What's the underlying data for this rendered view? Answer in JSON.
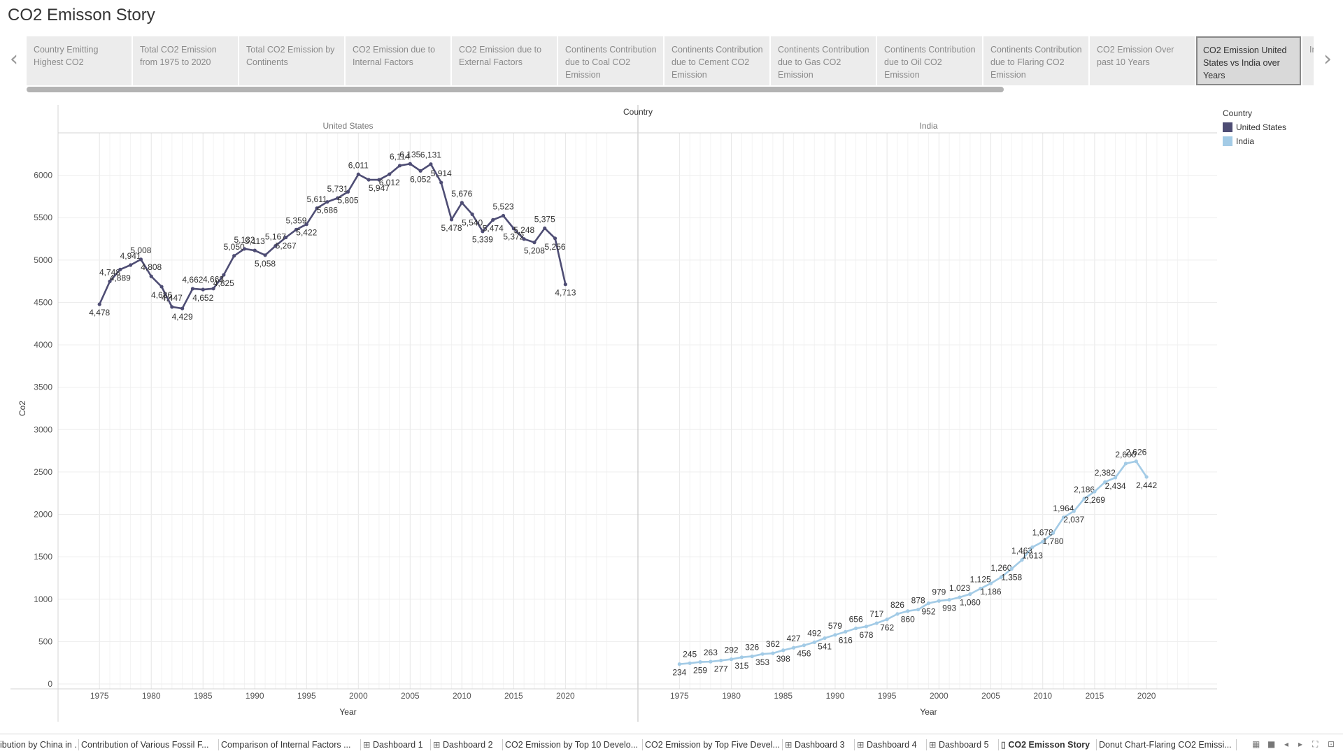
{
  "title": "CO2 Emisson Story",
  "story_points": [
    "Country Emitting Highest CO2",
    "Total CO2 Emission from 1975 to 2020",
    "Total CO2 Emission by Continents",
    "CO2 Emission due to Internal Factors",
    "CO2 Emission due to External Factors",
    "Continents Contribution due to Coal CO2 Emission",
    "Continents Contribution due to Cement CO2 Emission",
    "Continents Contribution due to Gas CO2 Emission",
    "Continents Contribution due to Oil CO2 Emission",
    "Continents Contribution due to Flaring CO2 Emission",
    "CO2 Emission Over past 10 Years",
    "CO2 Emission United States vs India over Years",
    "India vs United States"
  ],
  "active_story_index": 11,
  "sheet_tabs": [
    {
      "label": "ibution by China in ...",
      "icon": ""
    },
    {
      "label": "Contribution of Various Fossil F...",
      "icon": ""
    },
    {
      "label": "Comparison of Internal Factors ...",
      "icon": ""
    },
    {
      "label": "Dashboard 1",
      "icon": "dashboard-icon"
    },
    {
      "label": "Dashboard 2",
      "icon": "dashboard-icon"
    },
    {
      "label": "CO2 Emission by Top 10 Develo...",
      "icon": ""
    },
    {
      "label": "CO2 Emission by Top Five Devel...",
      "icon": ""
    },
    {
      "label": "Dashboard 3",
      "icon": "dashboard-icon"
    },
    {
      "label": "Dashboard 4",
      "icon": "dashboard-icon"
    },
    {
      "label": "Dashboard 5",
      "icon": "dashboard-icon"
    },
    {
      "label": "CO2 Emisson Story",
      "icon": "story-icon",
      "active": true
    },
    {
      "label": "Donut Chart-Flaring CO2 Emissi...",
      "icon": ""
    }
  ],
  "legend": {
    "title": "Country",
    "items": [
      {
        "label": "United States",
        "color": "#4e4d74"
      },
      {
        "label": "India",
        "color": "#a3cbe6"
      }
    ]
  },
  "chart_data": {
    "type": "line",
    "column_header": "Country",
    "panes": [
      "United States",
      "India"
    ],
    "xlabel": "Year",
    "ylabel": "Co2",
    "xlim": [
      1971,
      2027
    ],
    "ylim": [
      0,
      6500
    ],
    "x_ticks": [
      1975,
      1980,
      1985,
      1990,
      1995,
      2000,
      2005,
      2010,
      2015,
      2020
    ],
    "y_ticks": [
      0,
      500,
      1000,
      1500,
      2000,
      2500,
      3000,
      3500,
      4000,
      4500,
      5000,
      5500,
      6000
    ],
    "grid": true,
    "legend_position": "right",
    "x": [
      1975,
      1976,
      1977,
      1978,
      1979,
      1980,
      1981,
      1982,
      1983,
      1984,
      1985,
      1986,
      1987,
      1988,
      1989,
      1990,
      1991,
      1992,
      1993,
      1994,
      1995,
      1996,
      1997,
      1998,
      1999,
      2000,
      2001,
      2002,
      2003,
      2004,
      2005,
      2006,
      2007,
      2008,
      2009,
      2010,
      2011,
      2012,
      2013,
      2014,
      2015,
      2016,
      2017,
      2018,
      2019,
      2020
    ],
    "series": [
      {
        "name": "United States",
        "color": "#4e4d74",
        "values": [
          4478,
          4748,
          4889,
          4941,
          5008,
          4808,
          4686,
          4447,
          4429,
          4662,
          4652,
          4663,
          4825,
          5050,
          5132,
          5113,
          5058,
          5167,
          5267,
          5359,
          5422,
          5611,
          5686,
          5731,
          5805,
          6011,
          5947,
          5947,
          6012,
          6114,
          6135,
          6052,
          6131,
          5914,
          5478,
          5676,
          5540,
          5339,
          5474,
          5523,
          5372,
          5248,
          5208,
          5375,
          5256,
          4713
        ],
        "labels": [
          "4,478",
          "4,748",
          "4,889",
          "4,941",
          "5,008",
          "4,808",
          "4,686",
          "4,447",
          "4,429",
          "4,662",
          "4,652",
          "4,663",
          "4,825",
          "5,050",
          "5,132",
          "5,113",
          "5,058",
          "5,167",
          "5,267",
          "5,359",
          "5,422",
          "5,611",
          "5,686",
          "5,731",
          "5,805",
          "6,011",
          "",
          "5,947",
          "6,012",
          "6,114",
          "6,135",
          "6,052",
          "6,131",
          "5,914",
          "5,478",
          "5,676",
          "5,540",
          "5,339",
          "5,474",
          "5,523",
          "5,372",
          "5,248",
          "5,208",
          "5,375",
          "5,256",
          "4,713"
        ]
      },
      {
        "name": "India",
        "color": "#a3cbe6",
        "values": [
          234,
          245,
          259,
          263,
          277,
          292,
          315,
          326,
          353,
          362,
          398,
          427,
          456,
          492,
          541,
          579,
          616,
          656,
          678,
          717,
          762,
          826,
          860,
          878,
          952,
          979,
          993,
          1023,
          1060,
          1125,
          1186,
          1260,
          1358,
          1463,
          1613,
          1678,
          1780,
          1964,
          2037,
          2186,
          2269,
          2382,
          2434,
          2600,
          2626,
          2442
        ],
        "labels": [
          "234",
          "245",
          "259",
          "263",
          "277",
          "292",
          "315",
          "326",
          "353",
          "362",
          "398",
          "427",
          "456",
          "492",
          "541",
          "579",
          "616",
          "656",
          "678",
          "717",
          "762",
          "826",
          "860",
          "878",
          "952",
          "979",
          "993",
          "1,023",
          "1,060",
          "1,125",
          "1,186",
          "1,260",
          "1,358",
          "1,463",
          "1,613",
          "1,678",
          "1,780",
          "1,964",
          "2,037",
          "2,186",
          "2,269",
          "2,382",
          "2,434",
          "2,600",
          "2,626",
          "2,442"
        ]
      }
    ]
  }
}
